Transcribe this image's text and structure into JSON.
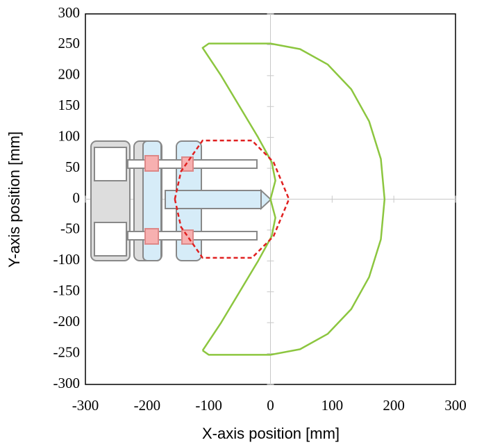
{
  "chart_data": {
    "type": "line",
    "xlabel": "X-axis position [mm]",
    "ylabel": "Y-axis position [mm]",
    "xlim": [
      -300,
      300
    ],
    "ylim": [
      -300,
      300
    ],
    "xticks": [
      -300,
      -200,
      -100,
      0,
      100,
      200,
      300
    ],
    "yticks": [
      -300,
      -250,
      -200,
      -150,
      -100,
      -50,
      0,
      50,
      100,
      150,
      200,
      250,
      300
    ],
    "series": [
      {
        "color": "#8cc63f",
        "dashed": false,
        "x": [
          -110,
          -80,
          -50,
          -20,
          2,
          8,
          0,
          8,
          2,
          -20,
          -50,
          -80,
          -110,
          -100,
          0,
          48,
          93,
          131,
          160,
          179,
          185,
          179,
          160,
          131,
          93,
          48,
          0,
          -100,
          -110
        ],
        "values": [
          -245,
          -200,
          -150,
          -100,
          -60,
          -30,
          0,
          30,
          60,
          100,
          150,
          200,
          245,
          252,
          252,
          243,
          218,
          178,
          126,
          65,
          0,
          -65,
          -126,
          -178,
          -218,
          -243,
          -252,
          -252,
          -245
        ]
      },
      {
        "color": "#e02020",
        "dashed": true,
        "x": [
          -155,
          -145,
          -110,
          -30,
          5,
          30,
          5,
          -30,
          -110,
          -145,
          -155
        ],
        "values": [
          0,
          45,
          95,
          95,
          60,
          0,
          -60,
          -95,
          -95,
          -45,
          0
        ]
      }
    ]
  }
}
